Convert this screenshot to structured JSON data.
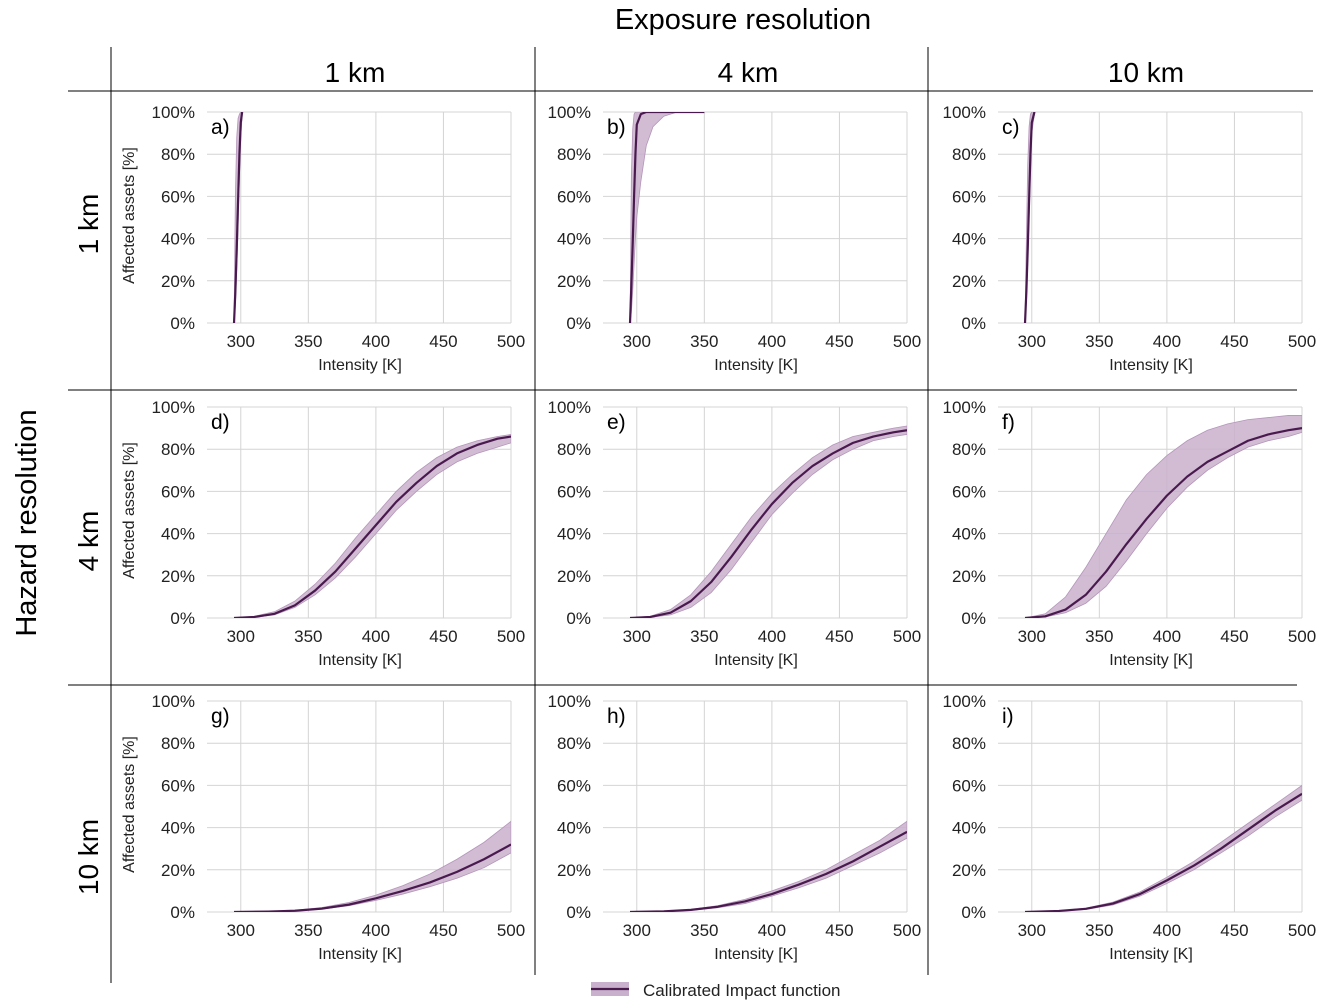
{
  "figure": {
    "column_title": "Exposure resolution",
    "row_title": "Hazard resolution",
    "columns": [
      "1 km",
      "4 km",
      "10 km"
    ],
    "rows": [
      "1 km",
      "4 km",
      "10 km"
    ]
  },
  "legend": {
    "label": "Calibrated Impact function"
  },
  "colors": {
    "line": "#4a1a4f",
    "band": "#c9b0cd",
    "grid": "#d4d4d4"
  },
  "chart_data": [
    {
      "type": "line",
      "panel": "a)",
      "row": "1 km",
      "column": "1 km",
      "xlabel": "Intensity [K]",
      "ylabel": "Affected assets [%]",
      "xlim": [
        275,
        500
      ],
      "ylim": [
        0,
        100
      ],
      "xticks": [
        "300",
        "350",
        "400",
        "450",
        "500"
      ],
      "yticks": [
        "0%",
        "20%",
        "40%",
        "60%",
        "80%",
        "100%"
      ],
      "grid": true,
      "series": [
        {
          "name": "Calibrated Impact function",
          "x": [
            295,
            296,
            297,
            298,
            299,
            300,
            301
          ],
          "y": [
            0,
            15,
            35,
            58,
            80,
            95,
            100
          ],
          "y_lower": [
            0,
            8,
            25,
            45,
            70,
            88,
            98
          ],
          "y_upper": [
            0,
            60,
            88,
            97,
            99,
            100,
            100
          ]
        }
      ]
    },
    {
      "type": "line",
      "panel": "b)",
      "row": "1 km",
      "column": "4 km",
      "xlabel": "Intensity [K]",
      "ylabel": "",
      "xlim": [
        275,
        500
      ],
      "ylim": [
        0,
        100
      ],
      "xticks": [
        "300",
        "350",
        "400",
        "450",
        "500"
      ],
      "yticks": [
        "0%",
        "20%",
        "40%",
        "60%",
        "80%",
        "100%"
      ],
      "grid": true,
      "series": [
        {
          "name": "Calibrated Impact function",
          "x": [
            295,
            296,
            297,
            298,
            299,
            300,
            303,
            307,
            312,
            320,
            330,
            350
          ],
          "y": [
            0,
            18,
            38,
            60,
            80,
            94,
            99,
            100,
            100,
            100,
            100,
            100
          ],
          "y_lower": [
            0,
            5,
            15,
            28,
            40,
            50,
            67,
            84,
            93,
            98,
            100,
            100
          ],
          "y_upper": [
            0,
            70,
            92,
            99,
            100,
            100,
            100,
            100,
            100,
            100,
            100,
            100
          ]
        }
      ]
    },
    {
      "type": "line",
      "panel": "c)",
      "row": "1 km",
      "column": "10 km",
      "xlabel": "Intensity [K]",
      "ylabel": "",
      "xlim": [
        275,
        500
      ],
      "ylim": [
        0,
        100
      ],
      "xticks": [
        "300",
        "350",
        "400",
        "450",
        "500"
      ],
      "yticks": [
        "0%",
        "20%",
        "40%",
        "60%",
        "80%",
        "100%"
      ],
      "grid": true,
      "series": [
        {
          "name": "Calibrated Impact function",
          "x": [
            295,
            296,
            297,
            298,
            299,
            300,
            302
          ],
          "y": [
            0,
            15,
            35,
            58,
            80,
            95,
            100
          ],
          "y_lower": [
            0,
            10,
            28,
            50,
            72,
            90,
            99
          ],
          "y_upper": [
            0,
            40,
            75,
            93,
            99,
            100,
            100
          ]
        }
      ]
    },
    {
      "type": "line",
      "panel": "d)",
      "row": "4 km",
      "column": "1 km",
      "xlabel": "Intensity [K]",
      "ylabel": "Affected assets [%]",
      "xlim": [
        275,
        500
      ],
      "ylim": [
        0,
        100
      ],
      "xticks": [
        "300",
        "350",
        "400",
        "450",
        "500"
      ],
      "yticks": [
        "0%",
        "20%",
        "40%",
        "60%",
        "80%",
        "100%"
      ],
      "grid": true,
      "series": [
        {
          "name": "Calibrated Impact function",
          "x": [
            295,
            310,
            325,
            340,
            355,
            370,
            385,
            400,
            415,
            430,
            445,
            460,
            475,
            490,
            500
          ],
          "y": [
            0,
            0.5,
            2,
            6,
            13,
            22,
            33,
            44,
            55,
            64,
            72,
            78,
            82,
            85,
            86
          ],
          "y_lower": [
            0,
            0.3,
            1.5,
            5,
            11,
            19,
            29,
            40,
            51,
            60,
            68,
            74,
            78,
            81,
            83
          ],
          "y_upper": [
            0,
            0.8,
            3,
            8,
            16,
            26,
            38,
            49,
            60,
            69,
            76,
            81,
            84,
            86,
            87
          ]
        }
      ]
    },
    {
      "type": "line",
      "panel": "e)",
      "row": "4 km",
      "column": "4 km",
      "xlabel": "Intensity [K]",
      "ylabel": "",
      "xlim": [
        275,
        500
      ],
      "ylim": [
        0,
        100
      ],
      "xticks": [
        "300",
        "350",
        "400",
        "450",
        "500"
      ],
      "yticks": [
        "0%",
        "20%",
        "40%",
        "60%",
        "80%",
        "100%"
      ],
      "grid": true,
      "series": [
        {
          "name": "Calibrated Impact function",
          "x": [
            295,
            310,
            325,
            340,
            355,
            370,
            385,
            400,
            415,
            430,
            445,
            460,
            475,
            490,
            500
          ],
          "y": [
            0,
            0.5,
            2.5,
            8,
            17,
            29,
            42,
            54,
            64,
            72,
            78,
            83,
            86,
            88,
            89
          ],
          "y_lower": [
            0,
            0.3,
            1.5,
            5,
            12,
            23,
            36,
            49,
            59,
            68,
            75,
            80,
            84,
            86,
            87
          ],
          "y_upper": [
            0,
            0.8,
            4,
            11,
            22,
            35,
            48,
            59,
            68,
            76,
            82,
            86,
            88,
            90,
            91
          ]
        }
      ]
    },
    {
      "type": "line",
      "panel": "f)",
      "row": "4 km",
      "column": "10 km",
      "xlabel": "Intensity [K]",
      "ylabel": "",
      "xlim": [
        275,
        500
      ],
      "ylim": [
        0,
        100
      ],
      "xticks": [
        "300",
        "350",
        "400",
        "450",
        "500"
      ],
      "yticks": [
        "0%",
        "20%",
        "40%",
        "60%",
        "80%",
        "100%"
      ],
      "grid": true,
      "series": [
        {
          "name": "Calibrated Impact function",
          "x": [
            295,
            310,
            325,
            340,
            355,
            370,
            385,
            400,
            415,
            430,
            445,
            460,
            475,
            490,
            500
          ],
          "y": [
            0,
            0.8,
            4,
            11,
            22,
            35,
            47,
            58,
            67,
            74,
            79,
            84,
            87,
            89,
            90
          ],
          "y_lower": [
            0,
            0.5,
            2.5,
            7,
            15,
            27,
            40,
            52,
            62,
            70,
            76,
            81,
            84,
            86,
            88
          ],
          "y_upper": [
            0,
            2,
            10,
            24,
            40,
            56,
            68,
            77,
            84,
            89,
            92,
            94,
            95,
            96,
            96
          ]
        }
      ]
    },
    {
      "type": "line",
      "panel": "g)",
      "row": "10 km",
      "column": "1 km",
      "xlabel": "Intensity [K]",
      "ylabel": "Affected assets [%]",
      "xlim": [
        275,
        500
      ],
      "ylim": [
        0,
        100
      ],
      "xticks": [
        "300",
        "350",
        "400",
        "450",
        "500"
      ],
      "yticks": [
        "0%",
        "20%",
        "40%",
        "60%",
        "80%",
        "100%"
      ],
      "grid": true,
      "series": [
        {
          "name": "Calibrated Impact function",
          "x": [
            295,
            320,
            340,
            360,
            380,
            400,
            420,
            440,
            460,
            480,
            500
          ],
          "y": [
            0,
            0.2,
            0.6,
            1.6,
            3.5,
            6.5,
            10,
            14,
            19,
            25,
            32
          ],
          "y_lower": [
            0,
            0.2,
            0.5,
            1.4,
            3,
            5.5,
            8.5,
            12,
            16,
            21,
            28
          ],
          "y_upper": [
            0,
            0.3,
            0.8,
            2.1,
            4.5,
            8,
            12.5,
            18,
            25,
            33,
            43
          ]
        }
      ]
    },
    {
      "type": "line",
      "panel": "h)",
      "row": "10 km",
      "column": "4 km",
      "xlabel": "Intensity [K]",
      "ylabel": "",
      "xlim": [
        275,
        500
      ],
      "ylim": [
        0,
        100
      ],
      "xticks": [
        "300",
        "350",
        "400",
        "450",
        "500"
      ],
      "yticks": [
        "0%",
        "20%",
        "40%",
        "60%",
        "80%",
        "100%"
      ],
      "grid": true,
      "series": [
        {
          "name": "Calibrated Impact function",
          "x": [
            295,
            320,
            340,
            360,
            380,
            400,
            420,
            440,
            460,
            480,
            500
          ],
          "y": [
            0,
            0.3,
            1,
            2.5,
            5,
            8.5,
            13,
            18,
            24,
            31,
            38
          ],
          "y_lower": [
            0,
            0.2,
            0.8,
            2,
            4,
            7.5,
            11.5,
            16,
            22,
            28,
            35
          ],
          "y_upper": [
            0,
            0.4,
            1.2,
            3,
            6,
            10,
            14.5,
            20,
            27,
            34,
            43
          ]
        }
      ]
    },
    {
      "type": "line",
      "panel": "i)",
      "row": "10 km",
      "column": "10 km",
      "xlabel": "Intensity [K]",
      "ylabel": "",
      "xlim": [
        275,
        500
      ],
      "ylim": [
        0,
        100
      ],
      "xticks": [
        "300",
        "350",
        "400",
        "450",
        "500"
      ],
      "yticks": [
        "0%",
        "20%",
        "40%",
        "60%",
        "80%",
        "100%"
      ],
      "grid": true,
      "series": [
        {
          "name": "Calibrated Impact function",
          "x": [
            295,
            320,
            340,
            360,
            380,
            400,
            420,
            440,
            460,
            480,
            500
          ],
          "y": [
            0,
            0.5,
            1.5,
            4,
            8.5,
            15,
            22,
            30,
            39,
            48,
            56
          ],
          "y_lower": [
            0,
            0.4,
            1.2,
            3.3,
            7.5,
            13.5,
            20,
            28,
            36,
            45,
            53
          ],
          "y_upper": [
            0,
            0.6,
            1.8,
            4.7,
            9.5,
            16.5,
            24,
            33,
            42,
            51,
            60
          ]
        }
      ]
    }
  ]
}
